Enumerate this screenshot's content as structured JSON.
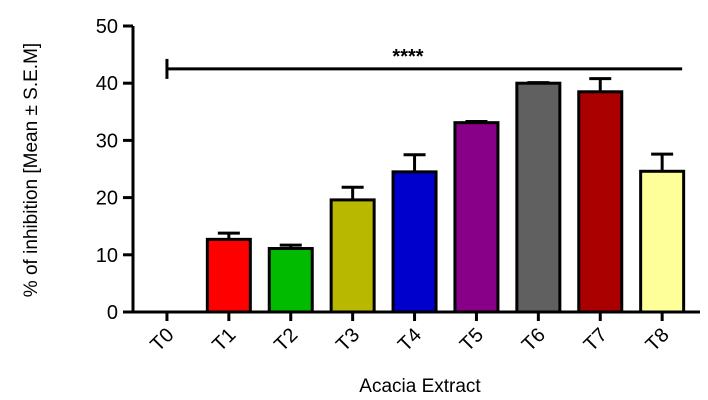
{
  "chart_data": {
    "type": "bar",
    "categories": [
      "T0",
      "T1",
      "T2",
      "T3",
      "T4",
      "T5",
      "T6",
      "T7",
      "T8"
    ],
    "values": [
      0,
      12.7,
      11.1,
      19.6,
      24.5,
      33.1,
      40.0,
      38.5,
      24.6
    ],
    "errors": [
      0,
      1.1,
      0.6,
      2.2,
      3.0,
      0.2,
      0.1,
      2.3,
      3.0
    ],
    "colors": [
      "#ffffff",
      "#ff0000",
      "#00bb00",
      "#b8b800",
      "#0000cc",
      "#880088",
      "#606060",
      "#aa0000",
      "#ffff99"
    ],
    "xlabel": "Acacia Extract",
    "ylabel": "% of inhibition [Mean ± S.E.M]",
    "ylim": [
      0,
      50
    ],
    "yticks": [
      0,
      10,
      20,
      30,
      40,
      50
    ],
    "grid": false,
    "significance": {
      "label": "****",
      "from": "T0",
      "to": "T8",
      "y": 42.5
    }
  }
}
